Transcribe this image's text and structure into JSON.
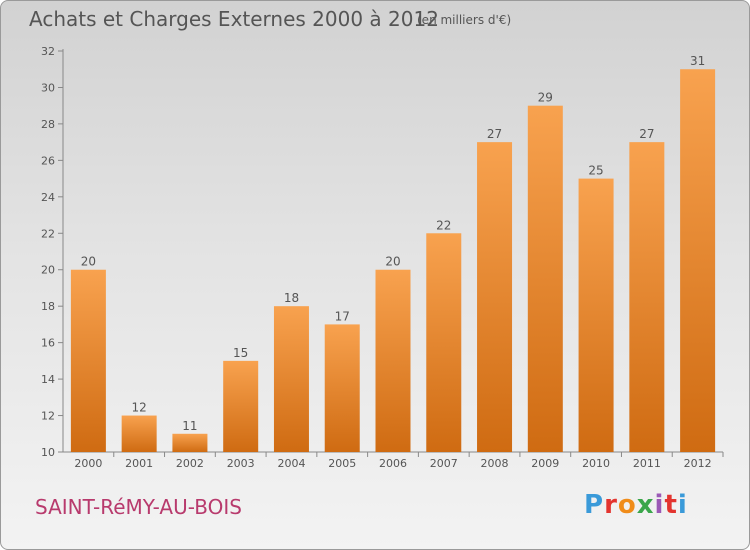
{
  "header": {
    "title": "Achats et Charges Externes 2000 à 2012",
    "subtitle": "(en milliers d'€)"
  },
  "footer": {
    "commune": "SAINT-RéMY-AU-BOIS",
    "logo_letters": [
      "P",
      "r",
      "o",
      "x",
      "i",
      "t",
      "i"
    ],
    "logo_colors": [
      "#3a9ad9",
      "#e3342f",
      "#f08c1a",
      "#3aa64a",
      "#9b59b6",
      "#e3342f",
      "#3a9ad9"
    ]
  },
  "colors": {
    "bar_top": "#f8a24f",
    "bar_bottom": "#cf6b12",
    "text": "#555555",
    "commune": "#b83a6d"
  },
  "chart_data": {
    "type": "bar",
    "categories": [
      "2000",
      "2001",
      "2002",
      "2003",
      "2004",
      "2005",
      "2006",
      "2007",
      "2008",
      "2009",
      "2010",
      "2011",
      "2012"
    ],
    "values": [
      20,
      12,
      11,
      15,
      18,
      17,
      20,
      22,
      27,
      29,
      25,
      27,
      31
    ],
    "data_labels": [
      "20",
      "12",
      "11",
      "15",
      "18",
      "17",
      "20",
      "22",
      "27",
      "29",
      "25",
      "27",
      "31"
    ],
    "ylim": [
      10,
      32
    ],
    "yticks": [
      10,
      12,
      14,
      16,
      18,
      20,
      22,
      24,
      26,
      28,
      30,
      32
    ],
    "ytick_labels": [
      "10",
      "12",
      "14",
      "16",
      "18",
      "20",
      "22",
      "24",
      "26",
      "28",
      "30",
      "32"
    ],
    "grid": false,
    "legend": "none"
  }
}
